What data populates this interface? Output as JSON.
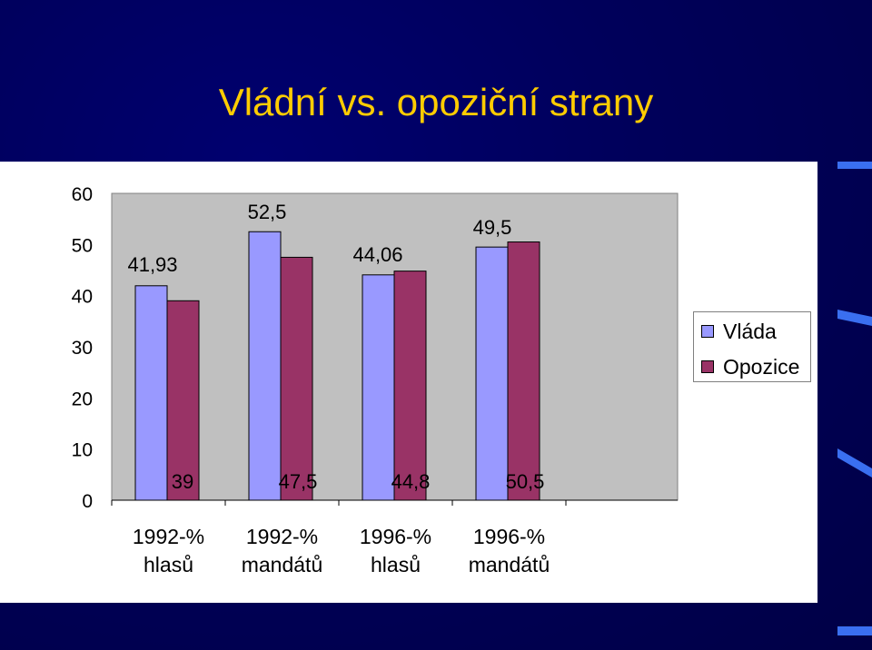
{
  "slide": {
    "title": "Vládní vs. opoziční strany"
  },
  "colors": {
    "background": "#00004f",
    "title": "#ffcc00",
    "plot_area": "#c0c0c0",
    "vlada": "#9999ff",
    "opozice": "#993366"
  },
  "chart_data": {
    "type": "bar",
    "title": "",
    "xlabel": "",
    "ylabel": "",
    "ylim": [
      0,
      60
    ],
    "yticks": [
      "0",
      "10",
      "20",
      "30",
      "40",
      "50",
      "60"
    ],
    "categories": [
      [
        "1992-%",
        "hlasů"
      ],
      [
        "1992-%",
        "mandátů"
      ],
      [
        "1996-%",
        "hlasů"
      ],
      [
        "1996-%",
        "mandátů"
      ]
    ],
    "series": [
      {
        "name": "Vláda",
        "values": [
          41.93,
          52.5,
          44.06,
          49.5
        ],
        "labels": [
          "41,93",
          "52,5",
          "44,06",
          "49,5"
        ]
      },
      {
        "name": "Opozice",
        "values": [
          39,
          47.5,
          44.8,
          50.5
        ],
        "labels": [
          "39",
          "47,5",
          "44,8",
          "50,5"
        ]
      }
    ],
    "grid": false,
    "legend": "right"
  }
}
